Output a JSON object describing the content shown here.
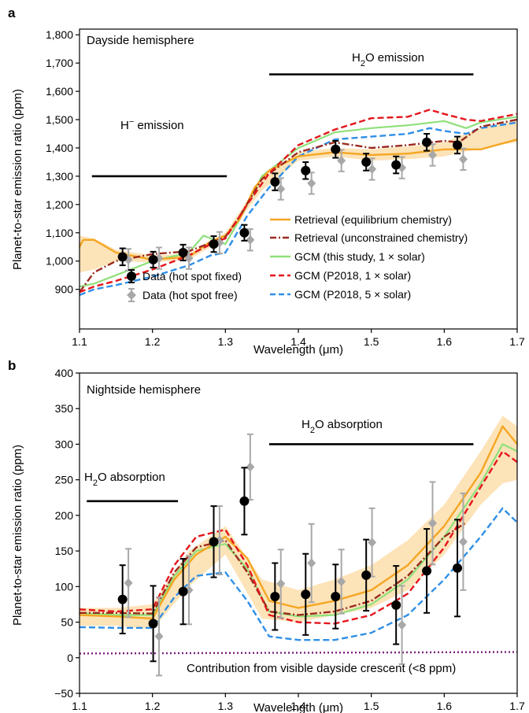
{
  "panels": {
    "a": {
      "letter": "a",
      "title": "Dayside hemisphere",
      "h2o_label": "H",
      "h2o_sub": "2",
      "h2o_suffix": "O emission",
      "hminus_label": "H",
      "hminus_sup": "−",
      "hminus_suffix": " emission"
    },
    "b": {
      "letter": "b",
      "title": "Nightside hemisphere",
      "h2o_abs_label": "H",
      "h2o_abs_sub": "2",
      "h2o_abs_suffix": "O absorption",
      "h2o_abs_left_label": "H",
      "h2o_abs_left_sub": "2",
      "h2o_abs_left_suffix": "O absorption",
      "crescent_label": "Contribution from visible dayside crescent (<8 ppm)"
    }
  },
  "legend": {
    "retrieval_eq": "Retrieval (equilibrium chemistry)",
    "retrieval_unc": "Retrieval (unconstrained chemistry)",
    "gcm_this": "GCM (this study, 1 × solar)",
    "gcm_p1": "GCM (P2018, 1 × solar)",
    "gcm_p5": "GCM (P2018, 5 × solar)",
    "data_fixed": "Data (hot spot fixed)",
    "data_free": "Data (hot spot free)"
  },
  "colors": {
    "retrieval_eq": "#f5a623",
    "retrieval_band": "#fde3b8",
    "retrieval_unc": "#9b2a1e",
    "gcm_this": "#8fe07a",
    "gcm_p1": "#e4161c",
    "gcm_p5": "#2f8fe6",
    "data_fixed": "#000000",
    "data_free": "#a8a8a8",
    "crescent": "#7b1f7b"
  },
  "chart_data": [
    {
      "type": "line",
      "panel": "a",
      "xlabel": "Wavelength (μm)",
      "ylabel": "Planet-to-star emission ratio (ppm)",
      "xlim": [
        1.1,
        1.7
      ],
      "ylim": [
        760,
        1820
      ],
      "xticks": [
        "1.1",
        "1.2",
        "1.3",
        "1.4",
        "1.5",
        "1.6",
        "1.7"
      ],
      "yticks": [
        "900",
        "1,000",
        "1,100",
        "1,200",
        "1,300",
        "1,400",
        "1,500",
        "1,600",
        "1,700",
        "1,800"
      ],
      "ytick_values": [
        900,
        1000,
        1100,
        1200,
        1300,
        1400,
        1500,
        1600,
        1700,
        1800
      ],
      "series": [
        {
          "key": "retrieval_eq",
          "x": [
            1.1,
            1.105,
            1.12,
            1.15,
            1.2,
            1.25,
            1.28,
            1.3,
            1.32,
            1.34,
            1.36,
            1.4,
            1.45,
            1.5,
            1.55,
            1.6,
            1.65,
            1.7
          ],
          "y": [
            1050,
            1075,
            1075,
            1030,
            1005,
            1015,
            1070,
            1090,
            1150,
            1260,
            1320,
            1370,
            1385,
            1375,
            1380,
            1395,
            1395,
            1430
          ]
        },
        {
          "key": "band_upper",
          "x": [
            1.1,
            1.12,
            1.15,
            1.2,
            1.25,
            1.3,
            1.35,
            1.4,
            1.45,
            1.5,
            1.55,
            1.6,
            1.65,
            1.7
          ],
          "y": [
            1090,
            1080,
            1040,
            1020,
            1025,
            1100,
            1290,
            1385,
            1400,
            1395,
            1405,
            1420,
            1470,
            1500
          ]
        },
        {
          "key": "band_lower",
          "x": [
            1.1,
            1.12,
            1.15,
            1.2,
            1.25,
            1.3,
            1.35,
            1.4,
            1.45,
            1.5,
            1.55,
            1.6,
            1.65,
            1.7
          ],
          "y": [
            960,
            970,
            1000,
            995,
            1005,
            1080,
            1250,
            1355,
            1370,
            1355,
            1360,
            1370,
            1400,
            1420
          ]
        },
        {
          "key": "retrieval_unc",
          "x": [
            1.1,
            1.12,
            1.15,
            1.2,
            1.25,
            1.3,
            1.32,
            1.35,
            1.4,
            1.45,
            1.5,
            1.55,
            1.6,
            1.62,
            1.65,
            1.7
          ],
          "y": [
            890,
            960,
            1000,
            1025,
            1035,
            1085,
            1160,
            1290,
            1385,
            1420,
            1400,
            1410,
            1425,
            1420,
            1475,
            1500
          ]
        },
        {
          "key": "gcm_this",
          "x": [
            1.1,
            1.12,
            1.15,
            1.2,
            1.25,
            1.27,
            1.3,
            1.32,
            1.35,
            1.4,
            1.45,
            1.5,
            1.55,
            1.6,
            1.63,
            1.65,
            1.7
          ],
          "y": [
            910,
            920,
            950,
            1000,
            1030,
            1090,
            1060,
            1150,
            1300,
            1400,
            1455,
            1470,
            1480,
            1495,
            1470,
            1490,
            1510
          ]
        },
        {
          "key": "gcm_p1",
          "x": [
            1.1,
            1.12,
            1.15,
            1.2,
            1.25,
            1.28,
            1.3,
            1.33,
            1.36,
            1.4,
            1.45,
            1.5,
            1.55,
            1.58,
            1.6,
            1.63,
            1.65,
            1.7
          ],
          "y": [
            890,
            910,
            930,
            970,
            1020,
            1060,
            1080,
            1200,
            1310,
            1410,
            1465,
            1505,
            1510,
            1535,
            1520,
            1500,
            1495,
            1520
          ]
        },
        {
          "key": "gcm_p5",
          "x": [
            1.1,
            1.12,
            1.15,
            1.2,
            1.25,
            1.28,
            1.3,
            1.33,
            1.36,
            1.4,
            1.45,
            1.5,
            1.55,
            1.58,
            1.6,
            1.63,
            1.65,
            1.7
          ],
          "y": [
            880,
            900,
            915,
            945,
            985,
            1020,
            1030,
            1160,
            1260,
            1370,
            1430,
            1440,
            1450,
            1470,
            1460,
            1450,
            1470,
            1490
          ]
        }
      ],
      "points_fixed": {
        "x": [
          1.159,
          1.201,
          1.242,
          1.284,
          1.326,
          1.368,
          1.41,
          1.451,
          1.493,
          1.534,
          1.576,
          1.618
        ],
        "y": [
          1015,
          1005,
          1030,
          1060,
          1100,
          1280,
          1320,
          1395,
          1350,
          1340,
          1420,
          1410
        ],
        "err": [
          30,
          28,
          28,
          28,
          28,
          30,
          30,
          30,
          30,
          30,
          30,
          30
        ]
      },
      "points_free": {
        "x": [
          1.167,
          1.209,
          1.25,
          1.292,
          1.334,
          1.376,
          1.418,
          1.459,
          1.501,
          1.542,
          1.584,
          1.626
        ],
        "y": [
          1005,
          1010,
          1010,
          1065,
          1075,
          1255,
          1275,
          1355,
          1325,
          1330,
          1375,
          1360
        ],
        "err": [
          38,
          38,
          38,
          38,
          38,
          38,
          38,
          38,
          38,
          38,
          38,
          38
        ]
      },
      "bars": [
        {
          "label": "H2O emission",
          "x": [
            1.36,
            1.64
          ],
          "y": 1660
        },
        {
          "label": "H- emission",
          "x": [
            1.117,
            1.302
          ],
          "y": 1300
        }
      ]
    },
    {
      "type": "line",
      "panel": "b",
      "xlabel": "Wavelength (μm)",
      "ylabel": "Planet-to-star emission ratio (ppm)",
      "xlim": [
        1.1,
        1.7
      ],
      "ylim": [
        -50,
        400
      ],
      "xticks": [
        "1.1",
        "1.2",
        "1.3",
        "1.4",
        "1.5",
        "1.6",
        "1.7"
      ],
      "yticks": [
        "−50",
        "0",
        "50",
        "100",
        "150",
        "200",
        "250",
        "300",
        "350",
        "400"
      ],
      "ytick_values": [
        -50,
        0,
        50,
        100,
        150,
        200,
        250,
        300,
        350,
        400
      ],
      "series": [
        {
          "key": "retrieval_eq",
          "x": [
            1.1,
            1.15,
            1.2,
            1.23,
            1.26,
            1.3,
            1.33,
            1.36,
            1.4,
            1.45,
            1.5,
            1.55,
            1.6,
            1.65,
            1.68,
            1.7
          ],
          "y": [
            60,
            58,
            55,
            110,
            145,
            170,
            140,
            80,
            70,
            80,
            95,
            130,
            185,
            260,
            325,
            300
          ]
        },
        {
          "key": "band_upper",
          "x": [
            1.1,
            1.15,
            1.2,
            1.25,
            1.3,
            1.35,
            1.4,
            1.45,
            1.5,
            1.55,
            1.6,
            1.65,
            1.68,
            1.7
          ],
          "y": [
            70,
            70,
            75,
            150,
            185,
            110,
            95,
            110,
            130,
            165,
            215,
            290,
            340,
            325
          ]
        },
        {
          "key": "band_lower",
          "x": [
            1.1,
            1.15,
            1.2,
            1.25,
            1.3,
            1.35,
            1.4,
            1.45,
            1.5,
            1.55,
            1.6,
            1.65,
            1.68,
            1.7
          ],
          "y": [
            45,
            45,
            40,
            100,
            145,
            55,
            50,
            60,
            70,
            95,
            145,
            215,
            245,
            250
          ]
        },
        {
          "key": "retrieval_unc",
          "x": [
            1.1,
            1.15,
            1.2,
            1.23,
            1.26,
            1.3,
            1.33,
            1.36,
            1.4,
            1.45,
            1.5,
            1.55,
            1.6,
            1.63
          ],
          "y": [
            63,
            63,
            62,
            120,
            155,
            165,
            120,
            65,
            60,
            65,
            80,
            115,
            170,
            190
          ]
        },
        {
          "key": "gcm_this",
          "x": [
            1.1,
            1.15,
            1.2,
            1.23,
            1.26,
            1.3,
            1.33,
            1.36,
            1.4,
            1.45,
            1.5,
            1.55,
            1.6,
            1.65,
            1.68,
            1.7
          ],
          "y": [
            63,
            60,
            60,
            115,
            150,
            160,
            125,
            65,
            58,
            60,
            75,
            110,
            170,
            245,
            300,
            290
          ]
        },
        {
          "key": "gcm_p1",
          "x": [
            1.1,
            1.15,
            1.2,
            1.23,
            1.26,
            1.3,
            1.33,
            1.36,
            1.4,
            1.45,
            1.5,
            1.55,
            1.6,
            1.65,
            1.68,
            1.7
          ],
          "y": [
            68,
            65,
            68,
            130,
            170,
            180,
            130,
            60,
            50,
            48,
            60,
            90,
            155,
            240,
            290,
            275
          ]
        },
        {
          "key": "gcm_p5",
          "x": [
            1.1,
            1.15,
            1.2,
            1.23,
            1.26,
            1.3,
            1.33,
            1.36,
            1.4,
            1.45,
            1.5,
            1.55,
            1.6,
            1.65,
            1.68,
            1.7
          ],
          "y": [
            43,
            42,
            42,
            85,
            115,
            120,
            80,
            30,
            25,
            25,
            35,
            60,
            110,
            170,
            210,
            190
          ]
        },
        {
          "key": "crescent",
          "x": [
            1.1,
            1.7
          ],
          "y": [
            6,
            8
          ]
        }
      ],
      "points_fixed": {
        "x": [
          1.159,
          1.201,
          1.242,
          1.284,
          1.326,
          1.368,
          1.41,
          1.451,
          1.493,
          1.534,
          1.576,
          1.618
        ],
        "y": [
          82,
          48,
          93,
          163,
          220,
          86,
          89,
          86,
          116,
          74,
          122,
          126
        ],
        "err": [
          48,
          53,
          46,
          50,
          47,
          47,
          57,
          45,
          50,
          55,
          59,
          68
        ]
      },
      "points_free": {
        "x": [
          1.167,
          1.209,
          1.25,
          1.292,
          1.334,
          1.376,
          1.418,
          1.459,
          1.501,
          1.542,
          1.584,
          1.626
        ],
        "y": [
          105,
          30,
          95,
          165,
          268,
          104,
          133,
          107,
          162,
          46,
          189,
          163
        ],
        "err": [
          48,
          55,
          48,
          48,
          46,
          48,
          55,
          45,
          48,
          55,
          58,
          68
        ]
      },
      "bars": [
        {
          "label": "H2O absorption",
          "x": [
            1.36,
            1.64
          ],
          "y": 300
        },
        {
          "label": "H2O absorption",
          "x": [
            1.11,
            1.235
          ],
          "y": 220
        }
      ]
    }
  ]
}
